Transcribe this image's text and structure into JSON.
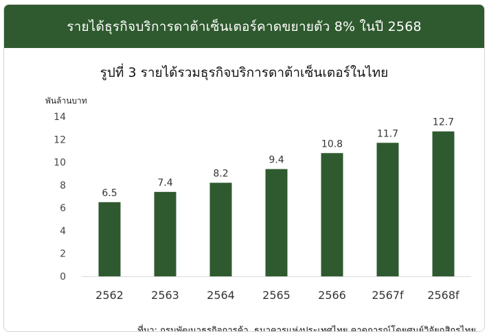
{
  "header": {
    "title": "รายได้ธุรกิจบริการดาต้าเซ็นเตอร์คาดขยายตัว 8% ในปี 2568"
  },
  "chart_data": {
    "type": "bar",
    "title": "รูปที่ 3 รายได้รวมธุรกิจบริการดาต้าเซ็นเตอร์ในไทย",
    "ylabel": "พันล้านบาท",
    "xlabel": "",
    "categories": [
      "2562",
      "2563",
      "2564",
      "2565",
      "2566",
      "2567f",
      "2568f"
    ],
    "values": [
      6.5,
      7.4,
      8.2,
      9.4,
      10.8,
      11.7,
      12.7
    ],
    "data_labels": [
      "6.5",
      "7.4",
      "8.2",
      "9.4",
      "10.8",
      "11.7",
      "12.7"
    ],
    "ylim": [
      0,
      14
    ],
    "yticks": [
      0,
      2,
      4,
      6,
      8,
      10,
      12,
      14
    ],
    "grid": false,
    "legend": "none",
    "bar_color": "#2f5a2f"
  },
  "footer": {
    "source": "ที่มา: กรมพัฒนาธุรกิจการค้า, ธนาคารแห่งประเทศไทย คาดการณ์โดยศูนย์วิจัยกสิกรไทย"
  }
}
